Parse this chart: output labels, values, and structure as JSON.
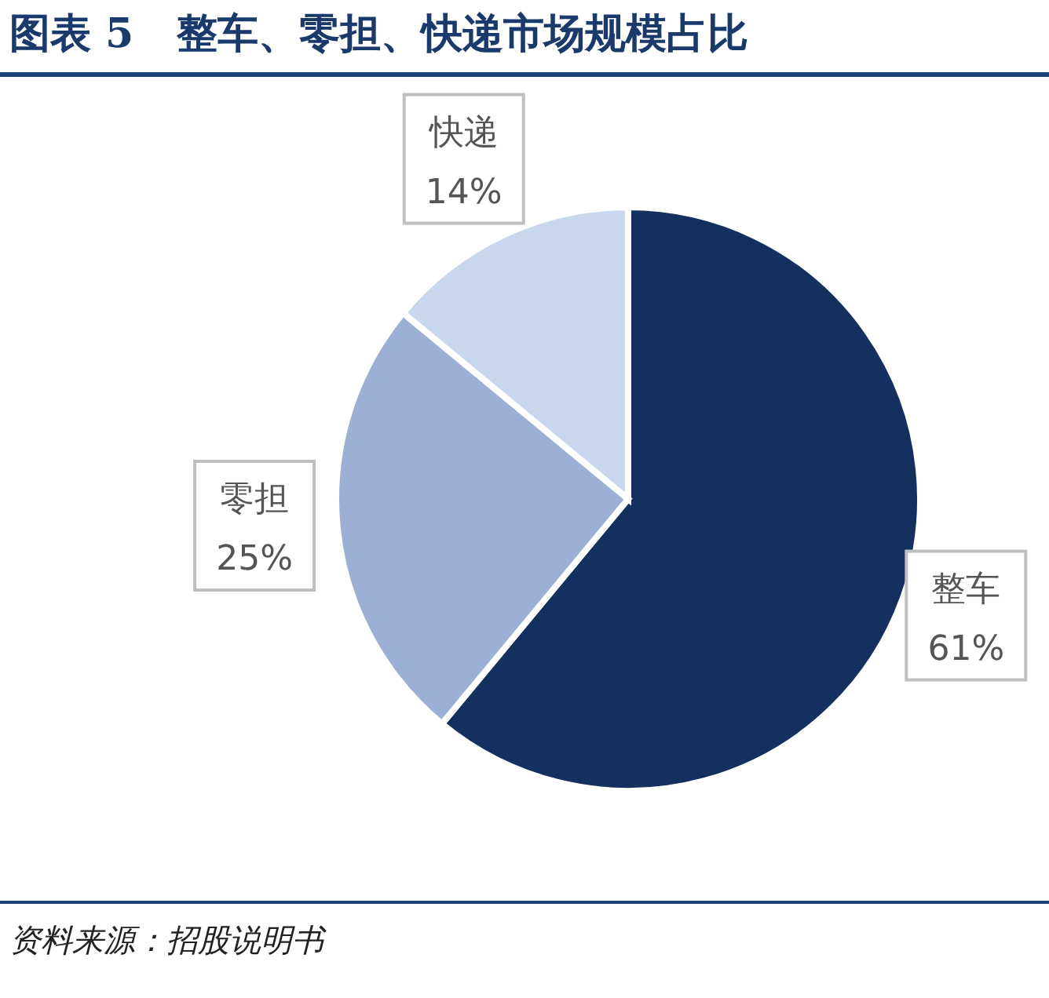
{
  "chart_data": {
    "type": "pie",
    "title": "图表 5   整车、零担、快递市场规模占比",
    "categories": [
      "整车",
      "零担",
      "快递"
    ],
    "values": [
      61,
      25,
      14
    ],
    "value_labels": [
      "61%",
      "25%",
      "14%"
    ],
    "colors": [
      "#14305e",
      "#9bb0d4",
      "#c9d7ee"
    ],
    "annotations": [
      "资料来源：招股说明书"
    ]
  }
}
